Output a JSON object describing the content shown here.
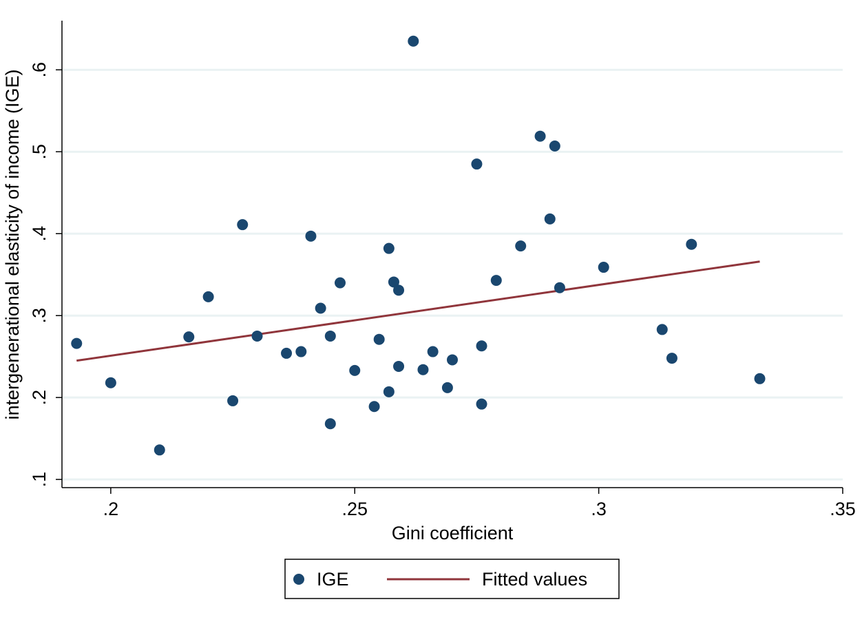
{
  "chart_data": {
    "type": "scatter",
    "xlabel": "Gini coefficient",
    "ylabel": "intergenerational elasticity of income (IGE)",
    "xlim": [
      0.19,
      0.35
    ],
    "ylim": [
      0.09,
      0.66
    ],
    "x_ticks": [
      0.2,
      0.25,
      0.3,
      0.35
    ],
    "x_tick_labels": [
      ".2",
      ".25",
      ".3",
      ".35"
    ],
    "y_ticks": [
      0.1,
      0.2,
      0.3,
      0.4,
      0.5,
      0.6
    ],
    "y_tick_labels": [
      ".1",
      ".2",
      ".3",
      ".4",
      ".5",
      ".6"
    ],
    "grid": "horizontal",
    "legend_position": "bottom",
    "colors": {
      "points": "#1a476f",
      "fit": "#90353b",
      "grid": "#eaf2f3"
    },
    "series": [
      {
        "name": "IGE",
        "kind": "scatter",
        "points": [
          [
            0.193,
            0.266
          ],
          [
            0.2,
            0.218
          ],
          [
            0.21,
            0.136
          ],
          [
            0.216,
            0.274
          ],
          [
            0.22,
            0.323
          ],
          [
            0.225,
            0.196
          ],
          [
            0.227,
            0.411
          ],
          [
            0.23,
            0.275
          ],
          [
            0.236,
            0.254
          ],
          [
            0.239,
            0.256
          ],
          [
            0.241,
            0.397
          ],
          [
            0.243,
            0.309
          ],
          [
            0.245,
            0.275
          ],
          [
            0.245,
            0.168
          ],
          [
            0.247,
            0.34
          ],
          [
            0.25,
            0.233
          ],
          [
            0.254,
            0.189
          ],
          [
            0.255,
            0.271
          ],
          [
            0.257,
            0.207
          ],
          [
            0.257,
            0.382
          ],
          [
            0.258,
            0.341
          ],
          [
            0.259,
            0.331
          ],
          [
            0.259,
            0.238
          ],
          [
            0.262,
            0.635
          ],
          [
            0.264,
            0.234
          ],
          [
            0.266,
            0.256
          ],
          [
            0.269,
            0.212
          ],
          [
            0.27,
            0.246
          ],
          [
            0.275,
            0.485
          ],
          [
            0.276,
            0.263
          ],
          [
            0.276,
            0.192
          ],
          [
            0.279,
            0.343
          ],
          [
            0.284,
            0.385
          ],
          [
            0.288,
            0.519
          ],
          [
            0.29,
            0.418
          ],
          [
            0.291,
            0.507
          ],
          [
            0.292,
            0.334
          ],
          [
            0.301,
            0.359
          ],
          [
            0.313,
            0.283
          ],
          [
            0.315,
            0.248
          ],
          [
            0.319,
            0.387
          ],
          [
            0.333,
            0.223
          ]
        ]
      },
      {
        "name": "Fitted values",
        "kind": "line",
        "points": [
          [
            0.193,
            0.245
          ],
          [
            0.333,
            0.366
          ]
        ]
      }
    ]
  }
}
